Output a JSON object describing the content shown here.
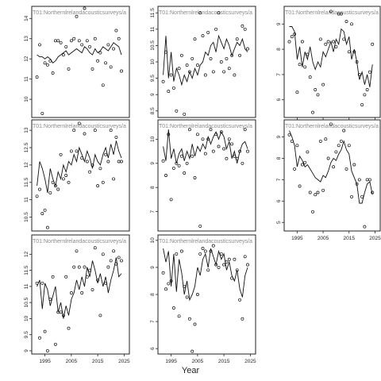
{
  "figure": {
    "xlabel": "Year"
  },
  "chart_data": [
    {
      "type": "scatter",
      "title": "T01:Northernlrelandacousticsurveys/a",
      "xlim": [
        1990,
        2027
      ],
      "ylim": [
        9.1,
        14.6
      ],
      "yticks": [
        10,
        11,
        12,
        13,
        14
      ],
      "xticks": [
        1995,
        2005,
        2015,
        2025
      ],
      "show_x_ticks": false,
      "x": [
        1992,
        1993,
        1994,
        1995,
        1996,
        1997,
        1998,
        1999,
        2000,
        2001,
        2002,
        2003,
        2004,
        2005,
        2006,
        2007,
        2008,
        2009,
        2010,
        2011,
        2012,
        2013,
        2014,
        2015,
        2016,
        2017,
        2018,
        2019,
        2020,
        2021,
        2022,
        2023,
        2024
      ],
      "points": [
        11.1,
        12.7,
        9.3,
        11.8,
        11.7,
        11.9,
        11.3,
        12.9,
        12.9,
        12.8,
        12.2,
        12.6,
        11.5,
        12.9,
        13,
        14.1,
        12.9,
        12.7,
        14.5,
        12.9,
        12.6,
        11.5,
        13,
        11.9,
        12.3,
        10.7,
        11.8,
        12.7,
        11.6,
        12.5,
        13.4,
        13,
        11.4
      ],
      "line": [
        12.2,
        12.1,
        12.1,
        12.0,
        12.1,
        12.0,
        11.8,
        11.9,
        12.1,
        12.2,
        12.3,
        12.4,
        12.2,
        12.3,
        12.4,
        12.5,
        12.4,
        12.3,
        12.6,
        12.5,
        12.3,
        12.2,
        12.5,
        12.3,
        12.4,
        12.6,
        12.5,
        12.4,
        12.6,
        12.8,
        12.7,
        12.6,
        12.2
      ]
    },
    {
      "type": "scatter",
      "title": "T01:Northernlrelandacousticsurveys/a",
      "xlim": [
        1990,
        2027
      ],
      "ylim": [
        8.3,
        11.7
      ],
      "yticks": [
        8.5,
        9.0,
        9.5,
        10.0,
        10.5,
        11.0,
        11.5
      ],
      "xticks": [
        1995,
        2005,
        2015,
        2025
      ],
      "show_x_ticks": false,
      "x": [
        1992,
        1993,
        1994,
        1995,
        1996,
        1997,
        1998,
        1999,
        2000,
        2001,
        2002,
        2003,
        2004,
        2005,
        2006,
        2007,
        2008,
        2009,
        2010,
        2011,
        2012,
        2013,
        2014,
        2015,
        2016,
        2017,
        2018,
        2019,
        2020,
        2021,
        2022,
        2023,
        2024
      ],
      "points": [
        9.4,
        10.3,
        9.1,
        9.6,
        9.2,
        8.5,
        9.8,
        10.2,
        8.4,
        9.9,
        9.7,
        10.1,
        10.7,
        9.9,
        11.5,
        10.8,
        9.6,
        10.9,
        10.1,
        9.7,
        11.0,
        11.5,
        10.0,
        9.7,
        10.1,
        9.8,
        10.2,
        9.6,
        10.7,
        10.2,
        11.1,
        11.0,
        10.4
      ],
      "line": [
        9.6,
        10.8,
        9.5,
        10.3,
        9.4,
        9.8,
        9.6,
        9.3,
        9.6,
        9.4,
        9.7,
        9.5,
        9.8,
        9.6,
        9.9,
        10.0,
        10.3,
        10.2,
        10.5,
        10.6,
        10.3,
        10.8,
        10.6,
        10.4,
        10.7,
        10.5,
        10.2,
        10.4,
        10.6,
        10.5,
        10.7,
        10.4,
        10.3
      ]
    },
    {
      "type": "scatter",
      "title": "T01:Northernlrelandacousticsurveys/a",
      "xlim": [
        1990,
        2027
      ],
      "ylim": [
        5.3,
        9.7
      ],
      "yticks": [
        6,
        7,
        8,
        9
      ],
      "xticks": [
        1995,
        2005,
        2015,
        2025
      ],
      "show_x_ticks": true,
      "x": [
        1992,
        1993,
        1994,
        1995,
        1996,
        1997,
        1998,
        1999,
        2000,
        2001,
        2002,
        2003,
        2004,
        2005,
        2006,
        2007,
        2008,
        2009,
        2010,
        2011,
        2012,
        2013,
        2014,
        2015,
        2016,
        2017,
        2018,
        2019,
        2020,
        2021,
        2022,
        2023,
        2024
      ],
      "points": [
        8.3,
        8.5,
        8.6,
        6.3,
        7.4,
        8.3,
        7.3,
        7.8,
        6.9,
        5.5,
        6.4,
        6.2,
        8.4,
        6.6,
        8.2,
        8.3,
        9.5,
        8.3,
        8.1,
        9.4,
        9.4,
        8.4,
        9.1,
        7.9,
        9.0,
        7.9,
        7.5,
        7.0,
        5.8,
        6.2,
        6.4,
        7.1,
        8.2
      ],
      "line": [
        8.9,
        8.9,
        8.7,
        7.6,
        8.1,
        7.3,
        7.9,
        7.6,
        8.1,
        7.5,
        7.2,
        7.5,
        7.3,
        7.9,
        7.7,
        8.0,
        8.3,
        7.9,
        8.4,
        8.2,
        8.8,
        8.7,
        8.2,
        8.5,
        7.6,
        8.0,
        7.5,
        6.8,
        7.1,
        6.6,
        7.0,
        6.5,
        7.4
      ]
    },
    {
      "type": "scatter",
      "title": "T01:Northernlrelandacousticsurveys/a",
      "xlim": [
        1990,
        2027
      ],
      "ylim": [
        10.1,
        13.3
      ],
      "yticks": [
        10.5,
        11.0,
        11.5,
        12.0,
        12.5,
        13.0
      ],
      "xticks": [
        1995,
        2005,
        2015,
        2025
      ],
      "show_x_ticks": false,
      "x": [
        1992,
        1993,
        1994,
        1995,
        1996,
        1997,
        1998,
        1999,
        2000,
        2001,
        2002,
        2003,
        2004,
        2005,
        2006,
        2007,
        2008,
        2009,
        2010,
        2011,
        2012,
        2013,
        2014,
        2015,
        2016,
        2017,
        2018,
        2019,
        2020,
        2021,
        2022,
        2023,
        2024
      ],
      "points": [
        11.1,
        11.3,
        10.6,
        10.7,
        10.2,
        11.2,
        11.5,
        11.4,
        11.3,
        12.3,
        11.6,
        11.7,
        11.5,
        12.4,
        13.0,
        12.4,
        13.2,
        12.2,
        12.9,
        12.1,
        11.8,
        12.0,
        13.0,
        11.4,
        11.9,
        11.5,
        12.3,
        12.1,
        13.0,
        11.6,
        12.8,
        12.1,
        12.1
      ],
      "line": [
        11.4,
        12.1,
        11.9,
        11.6,
        11.2,
        11.9,
        11.6,
        11.4,
        11.8,
        11.6,
        12.0,
        11.8,
        12.1,
        12.0,
        12.3,
        12.1,
        12.5,
        12.3,
        12.1,
        12.4,
        12.2,
        11.9,
        12.3,
        12.1,
        12.0,
        12.3,
        12.5,
        12.2,
        12.6,
        12.3,
        12.7,
        12.4,
        12.2
      ]
    },
    {
      "type": "scatter",
      "title": "T01:Northernlrelandacousticsurveys/a",
      "xlim": [
        1990,
        2027
      ],
      "ylim": [
        6.2,
        10.8
      ],
      "yticks": [
        7,
        8,
        9,
        10
      ],
      "xticks": [
        1995,
        2005,
        2015,
        2025
      ],
      "show_x_ticks": false,
      "x": [
        1992,
        1993,
        1994,
        1995,
        1996,
        1997,
        1998,
        1999,
        2000,
        2001,
        2002,
        2003,
        2004,
        2005,
        2006,
        2007,
        2008,
        2009,
        2010,
        2011,
        2012,
        2013,
        2014,
        2015,
        2016,
        2017,
        2018,
        2019,
        2020,
        2021,
        2022,
        2023,
        2024
      ],
      "points": [
        9.1,
        8.5,
        10.2,
        7.5,
        8.8,
        9.0,
        8.9,
        9.3,
        8.6,
        9.0,
        10.4,
        9.3,
        8.4,
        10.2,
        6.4,
        10.0,
        9.4,
        10.0,
        10.4,
        9.5,
        10.2,
        9.7,
        10.3,
        9.6,
        9.2,
        10.0,
        9.8,
        9.3,
        9.2,
        9.5,
        9.0,
        10.4,
        9.5
      ],
      "line": [
        9.7,
        9.1,
        10.4,
        9.2,
        9.6,
        9.0,
        9.4,
        9.6,
        9.1,
        9.5,
        9.2,
        9.8,
        9.3,
        9.7,
        9.5,
        9.8,
        9.6,
        10.1,
        9.8,
        10.1,
        10.3,
        10.0,
        10.3,
        10.1,
        9.6,
        9.9,
        9.2,
        9.5,
        9.0,
        9.5,
        9.8,
        9.9,
        9.6
      ]
    },
    {
      "type": "scatter",
      "title": "T01:Northernlrelandacousticsurveys/a",
      "xlim": [
        1990,
        2027
      ],
      "ylim": [
        4.6,
        9.8
      ],
      "yticks": [
        5,
        6,
        7,
        8,
        9
      ],
      "xticks": [
        1995,
        2005,
        2015,
        2025
      ],
      "show_x_ticks": true,
      "x": [
        1992,
        1993,
        1994,
        1995,
        1996,
        1997,
        1998,
        1999,
        2000,
        2001,
        2002,
        2003,
        2004,
        2005,
        2006,
        2007,
        2008,
        2009,
        2010,
        2011,
        2012,
        2013,
        2014,
        2015,
        2016,
        2017,
        2018,
        2019,
        2020,
        2021,
        2022,
        2023,
        2024
      ],
      "points": [
        9.1,
        8.8,
        7.5,
        8.6,
        6.7,
        7.7,
        7.8,
        8.3,
        6.4,
        5.5,
        6.3,
        6.4,
        8.8,
        6.5,
        8.9,
        8.0,
        9.6,
        7.6,
        8.3,
        8.6,
        8.8,
        9.3,
        7.5,
        8.6,
        6.2,
        7.7,
        6.8,
        7.0,
        6.2,
        4.8,
        7.0,
        7.0,
        6.4
      ],
      "line": [
        9.3,
        9.0,
        8.6,
        7.6,
        8.1,
        7.9,
        7.6,
        7.7,
        7.5,
        7.3,
        7.1,
        7.0,
        6.9,
        7.2,
        7.1,
        7.4,
        7.8,
        8.0,
        7.9,
        8.2,
        8.4,
        8.8,
        8.4,
        8.2,
        7.4,
        7.1,
        6.8,
        5.9,
        5.9,
        6.4,
        6.8,
        6.9,
        6.3
      ]
    },
    {
      "type": "scatter",
      "title": "T01:Northernlrelandacousticsurveys/a",
      "xlim": [
        1990,
        2027
      ],
      "ylim": [
        8.9,
        12.6
      ],
      "yticks": [
        9.0,
        9.5,
        10.0,
        10.5,
        11.0,
        11.5,
        12.0
      ],
      "xticks": [
        1995,
        2005,
        2015,
        2025
      ],
      "show_x_ticks": true,
      "x": [
        1992,
        1993,
        1994,
        1995,
        1996,
        1997,
        1998,
        1999,
        2000,
        2001,
        2002,
        2003,
        2004,
        2005,
        2006,
        2007,
        2008,
        2009,
        2010,
        2011,
        2012,
        2013,
        2014,
        2015,
        2016,
        2017,
        2018,
        2019,
        2020,
        2021,
        2022,
        2023,
        2024
      ],
      "points": [
        11.1,
        9.4,
        11.1,
        9.6,
        9.0,
        10.6,
        11.3,
        9.2,
        10.2,
        10.2,
        10.1,
        11.3,
        9.7,
        10.8,
        11.6,
        12.1,
        11.6,
        10.8,
        11.6,
        11.3,
        11.5,
        10.9,
        12.2,
        11.2,
        10.1,
        12.0,
        11.1,
        11.6,
        11.8,
        12.1,
        11.7,
        11.9,
        11.8
      ],
      "line": [
        11.0,
        11.2,
        10.3,
        11.1,
        10.9,
        10.4,
        10.7,
        11.0,
        10.2,
        10.5,
        10.0,
        10.4,
        10.1,
        10.6,
        10.8,
        11.2,
        10.9,
        11.3,
        11.0,
        11.6,
        11.3,
        11.8,
        11.5,
        11.1,
        11.4,
        11.0,
        11.3,
        10.8,
        11.2,
        11.5,
        11.9,
        11.3,
        11.4
      ]
    },
    {
      "type": "scatter",
      "title": "T01:Northernlrelandacousticsurveys/a",
      "xlim": [
        1990,
        2027
      ],
      "ylim": [
        5.8,
        10.2
      ],
      "yticks": [
        6,
        7,
        8,
        9,
        10
      ],
      "xticks": [
        1995,
        2005,
        2015,
        2025
      ],
      "show_x_ticks": true,
      "x": [
        1992,
        1993,
        1994,
        1995,
        1996,
        1997,
        1998,
        1999,
        2000,
        2001,
        2002,
        2003,
        2004,
        2005,
        2006,
        2007,
        2008,
        2009,
        2010,
        2011,
        2012,
        2013,
        2014,
        2015,
        2016,
        2017,
        2018,
        2019,
        2020,
        2021,
        2022,
        2023,
        2024
      ],
      "points": [
        8.8,
        8.2,
        8.4,
        8.5,
        7.5,
        9.5,
        7.2,
        9.6,
        8.3,
        7.9,
        7.1,
        5.9,
        6.9,
        8.0,
        9.5,
        9.7,
        9.6,
        8.9,
        9.6,
        9.8,
        9.1,
        9.0,
        9.5,
        9.1,
        9.2,
        9.3,
        8.6,
        9.3,
        8.9,
        7.8,
        7.1,
        9.4,
        9.1
      ],
      "line": [
        9.7,
        9.2,
        9.6,
        8.3,
        9.5,
        8.1,
        9.3,
        8.8,
        8.0,
        8.5,
        7.8,
        8.0,
        8.3,
        9.0,
        8.7,
        9.3,
        9.5,
        9.0,
        9.7,
        9.4,
        9.1,
        9.6,
        9.3,
        9.5,
        8.9,
        9.2,
        8.7,
        8.5,
        8.9,
        8.2,
        7.9,
        8.7,
        9.0
      ]
    }
  ]
}
